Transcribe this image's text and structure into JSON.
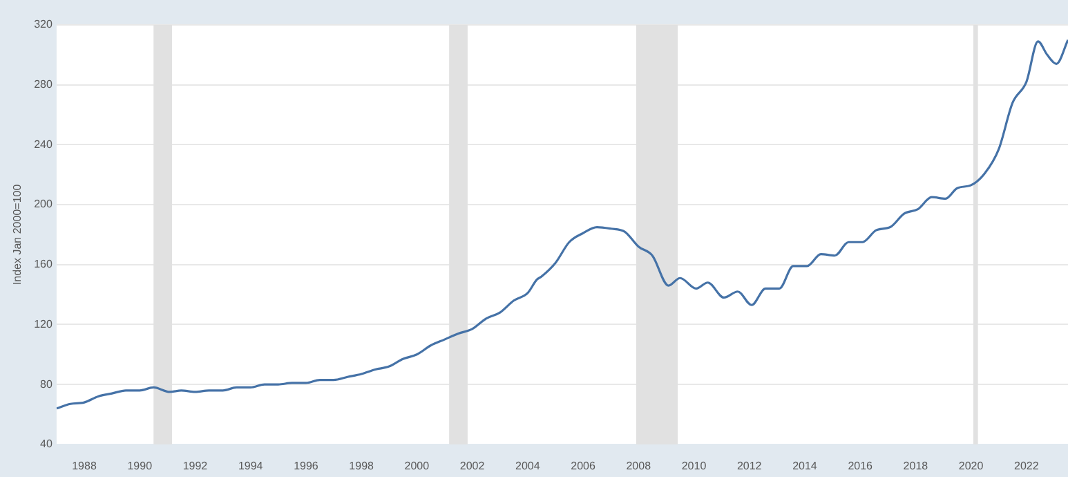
{
  "chart_data": {
    "type": "line",
    "ylabel": "Index Jan 2000=100",
    "x": [
      "1987-01",
      "1987-07",
      "1988-01",
      "1988-07",
      "1989-01",
      "1989-07",
      "1990-01",
      "1990-07",
      "1991-02",
      "1991-07",
      "1992-01",
      "1992-07",
      "1993-01",
      "1993-07",
      "1994-01",
      "1994-07",
      "1995-01",
      "1995-07",
      "1996-01",
      "1996-07",
      "1997-01",
      "1997-07",
      "1998-01",
      "1998-07",
      "1999-01",
      "1999-07",
      "2000-01",
      "2000-07",
      "2001-01",
      "2001-07",
      "2002-01",
      "2002-07",
      "2003-01",
      "2003-07",
      "2004-01",
      "2004-05",
      "2004-07",
      "2005-01",
      "2005-07",
      "2006-01",
      "2006-07",
      "2007-01",
      "2007-07",
      "2008-01",
      "2008-07",
      "2009-02",
      "2009-07",
      "2010-02",
      "2010-07",
      "2011-02",
      "2011-08",
      "2012-02",
      "2012-08",
      "2013-02",
      "2013-08",
      "2014-02",
      "2014-08",
      "2015-02",
      "2015-08",
      "2016-02",
      "2016-08",
      "2017-02",
      "2017-08",
      "2018-02",
      "2018-08",
      "2019-02",
      "2019-07",
      "2020-01",
      "2020-07",
      "2021-01",
      "2021-07",
      "2022-01",
      "2022-06",
      "2022-10",
      "2023-02",
      "2023-07"
    ],
    "series": [
      {
        "color": "#4572a7",
        "values": [
          64,
          67,
          68,
          72,
          74,
          76,
          76,
          78,
          75,
          76,
          75,
          76,
          76,
          78,
          78,
          80,
          80,
          81,
          81,
          83,
          83,
          85,
          87,
          90,
          92,
          97,
          100,
          106,
          110,
          114,
          117,
          124,
          128,
          136,
          141,
          150,
          152,
          161,
          175,
          181,
          185,
          184,
          182,
          172,
          166,
          146,
          151,
          144,
          148,
          138,
          142,
          133,
          144,
          144,
          159,
          159,
          167,
          166,
          175,
          175,
          183,
          185,
          194,
          197,
          205,
          204,
          211,
          213,
          221,
          237,
          268,
          282,
          309,
          300,
          294,
          310
        ]
      }
    ],
    "xlim": [
      "1987-01",
      "2023-07"
    ],
    "xticks": [
      "1988",
      "1990",
      "1992",
      "1994",
      "1996",
      "1998",
      "2000",
      "2002",
      "2004",
      "2006",
      "2008",
      "2010",
      "2012",
      "2014",
      "2016",
      "2018",
      "2020",
      "2022"
    ],
    "ylim": [
      40,
      320
    ],
    "yticks": [
      40,
      80,
      120,
      160,
      200,
      240,
      280,
      320
    ],
    "bands": [
      {
        "axis": "x",
        "from": "1990-07",
        "to": "1991-03",
        "color": "#e1e1e1"
      },
      {
        "axis": "x",
        "from": "2001-03",
        "to": "2001-11",
        "color": "#e1e1e1"
      },
      {
        "axis": "x",
        "from": "2007-12",
        "to": "2009-06",
        "color": "#e1e1e1"
      },
      {
        "axis": "x",
        "from": "2020-02",
        "to": "2020-04",
        "color": "#e1e1e1"
      }
    ],
    "grid": "y",
    "line_style": "solid",
    "marker": "none",
    "legend": false
  }
}
